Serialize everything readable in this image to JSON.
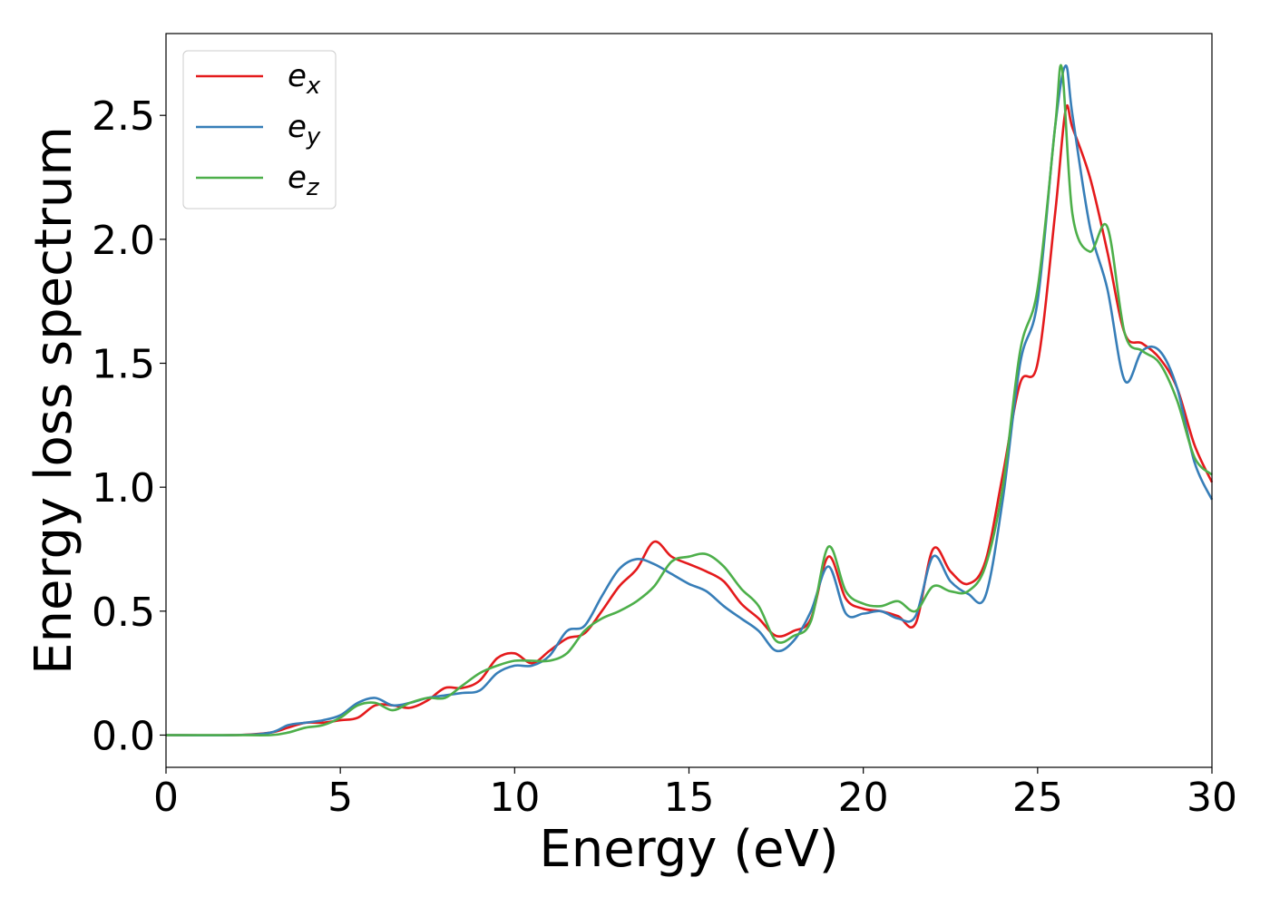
{
  "chart_data": {
    "type": "line",
    "xlabel": "Energy (eV)",
    "ylabel": "Energy loss spectrum",
    "xlim": [
      0,
      30
    ],
    "ylim": [
      -0.13,
      2.83
    ],
    "xticks": [
      "0",
      "5",
      "10",
      "15",
      "20",
      "25",
      "30"
    ],
    "yticks": [
      "0.0",
      "0.5",
      "1.0",
      "1.5",
      "2.0",
      "2.5"
    ],
    "grid": false,
    "legend_position": "top-left",
    "series": [
      {
        "name": "e",
        "name_sub": "x",
        "color": "#e41a1c",
        "x": [
          0,
          2,
          3,
          3.5,
          4,
          4.5,
          5,
          5.5,
          6,
          6.5,
          7,
          7.5,
          8,
          8.5,
          9,
          9.5,
          10,
          10.5,
          11,
          11.5,
          12,
          12.5,
          13,
          13.5,
          14,
          14.5,
          15,
          15.5,
          16,
          16.5,
          17,
          17.5,
          18,
          18.5,
          19,
          19.5,
          20,
          20.5,
          21,
          21.5,
          22,
          22.5,
          23,
          23.5,
          24,
          24.5,
          25,
          25.5,
          25.8,
          26,
          26.5,
          27,
          27.5,
          28,
          28.5,
          29,
          29.5,
          30
        ],
        "values": [
          0.0,
          0.0,
          0.01,
          0.03,
          0.05,
          0.05,
          0.06,
          0.07,
          0.12,
          0.12,
          0.11,
          0.14,
          0.19,
          0.19,
          0.22,
          0.31,
          0.33,
          0.29,
          0.34,
          0.39,
          0.41,
          0.5,
          0.6,
          0.67,
          0.78,
          0.72,
          0.69,
          0.66,
          0.62,
          0.53,
          0.47,
          0.4,
          0.42,
          0.47,
          0.72,
          0.55,
          0.51,
          0.5,
          0.48,
          0.45,
          0.75,
          0.66,
          0.61,
          0.7,
          1.05,
          1.42,
          1.5,
          2.1,
          2.52,
          2.45,
          2.25,
          1.95,
          1.62,
          1.58,
          1.52,
          1.4,
          1.17,
          1.02
        ]
      },
      {
        "name": "e",
        "name_sub": "y",
        "color": "#377eb8",
        "x": [
          0,
          2,
          3,
          3.5,
          4,
          4.5,
          5,
          5.5,
          6,
          6.5,
          7,
          7.5,
          8,
          8.5,
          9,
          9.5,
          10,
          10.5,
          11,
          11.5,
          12,
          12.5,
          13,
          13.5,
          14,
          14.5,
          15,
          15.5,
          16,
          16.5,
          17,
          17.5,
          18,
          18.5,
          19,
          19.5,
          20,
          20.5,
          21,
          21.5,
          22,
          22.5,
          23,
          23.5,
          24,
          24.5,
          25,
          25.5,
          25.8,
          26,
          26.5,
          27,
          27.5,
          28,
          28.5,
          29,
          29.5,
          30
        ],
        "values": [
          0.0,
          0.0,
          0.01,
          0.04,
          0.05,
          0.06,
          0.08,
          0.13,
          0.15,
          0.12,
          0.13,
          0.15,
          0.16,
          0.17,
          0.18,
          0.25,
          0.28,
          0.28,
          0.32,
          0.42,
          0.44,
          0.56,
          0.67,
          0.71,
          0.69,
          0.65,
          0.61,
          0.58,
          0.52,
          0.47,
          0.42,
          0.34,
          0.38,
          0.5,
          0.68,
          0.49,
          0.49,
          0.5,
          0.47,
          0.48,
          0.72,
          0.62,
          0.57,
          0.56,
          0.95,
          1.5,
          1.75,
          2.45,
          2.7,
          2.5,
          2.05,
          1.8,
          1.43,
          1.55,
          1.55,
          1.4,
          1.1,
          0.95
        ]
      },
      {
        "name": "e",
        "name_sub": "z",
        "color": "#4daf4a",
        "x": [
          0,
          2,
          3,
          3.5,
          4,
          4.5,
          5,
          5.5,
          6,
          6.5,
          7,
          7.5,
          8,
          8.5,
          9,
          9.5,
          10,
          10.5,
          11,
          11.5,
          12,
          12.5,
          13,
          13.5,
          14,
          14.5,
          15,
          15.5,
          16,
          16.5,
          17,
          17.5,
          18,
          18.5,
          19,
          19.5,
          20,
          20.5,
          21,
          21.5,
          22,
          22.5,
          23,
          23.5,
          24,
          24.5,
          25,
          25.5,
          25.7,
          26,
          26.5,
          27,
          27.5,
          28,
          28.5,
          29,
          29.5,
          30
        ],
        "values": [
          0.0,
          0.0,
          0.0,
          0.01,
          0.03,
          0.04,
          0.07,
          0.12,
          0.13,
          0.1,
          0.13,
          0.15,
          0.15,
          0.2,
          0.25,
          0.28,
          0.3,
          0.3,
          0.3,
          0.33,
          0.42,
          0.47,
          0.5,
          0.54,
          0.6,
          0.7,
          0.72,
          0.73,
          0.68,
          0.59,
          0.52,
          0.38,
          0.4,
          0.46,
          0.76,
          0.58,
          0.53,
          0.52,
          0.54,
          0.5,
          0.6,
          0.58,
          0.58,
          0.68,
          1.0,
          1.55,
          1.8,
          2.45,
          2.69,
          2.1,
          1.95,
          2.05,
          1.62,
          1.55,
          1.5,
          1.35,
          1.12,
          1.05
        ]
      }
    ]
  }
}
